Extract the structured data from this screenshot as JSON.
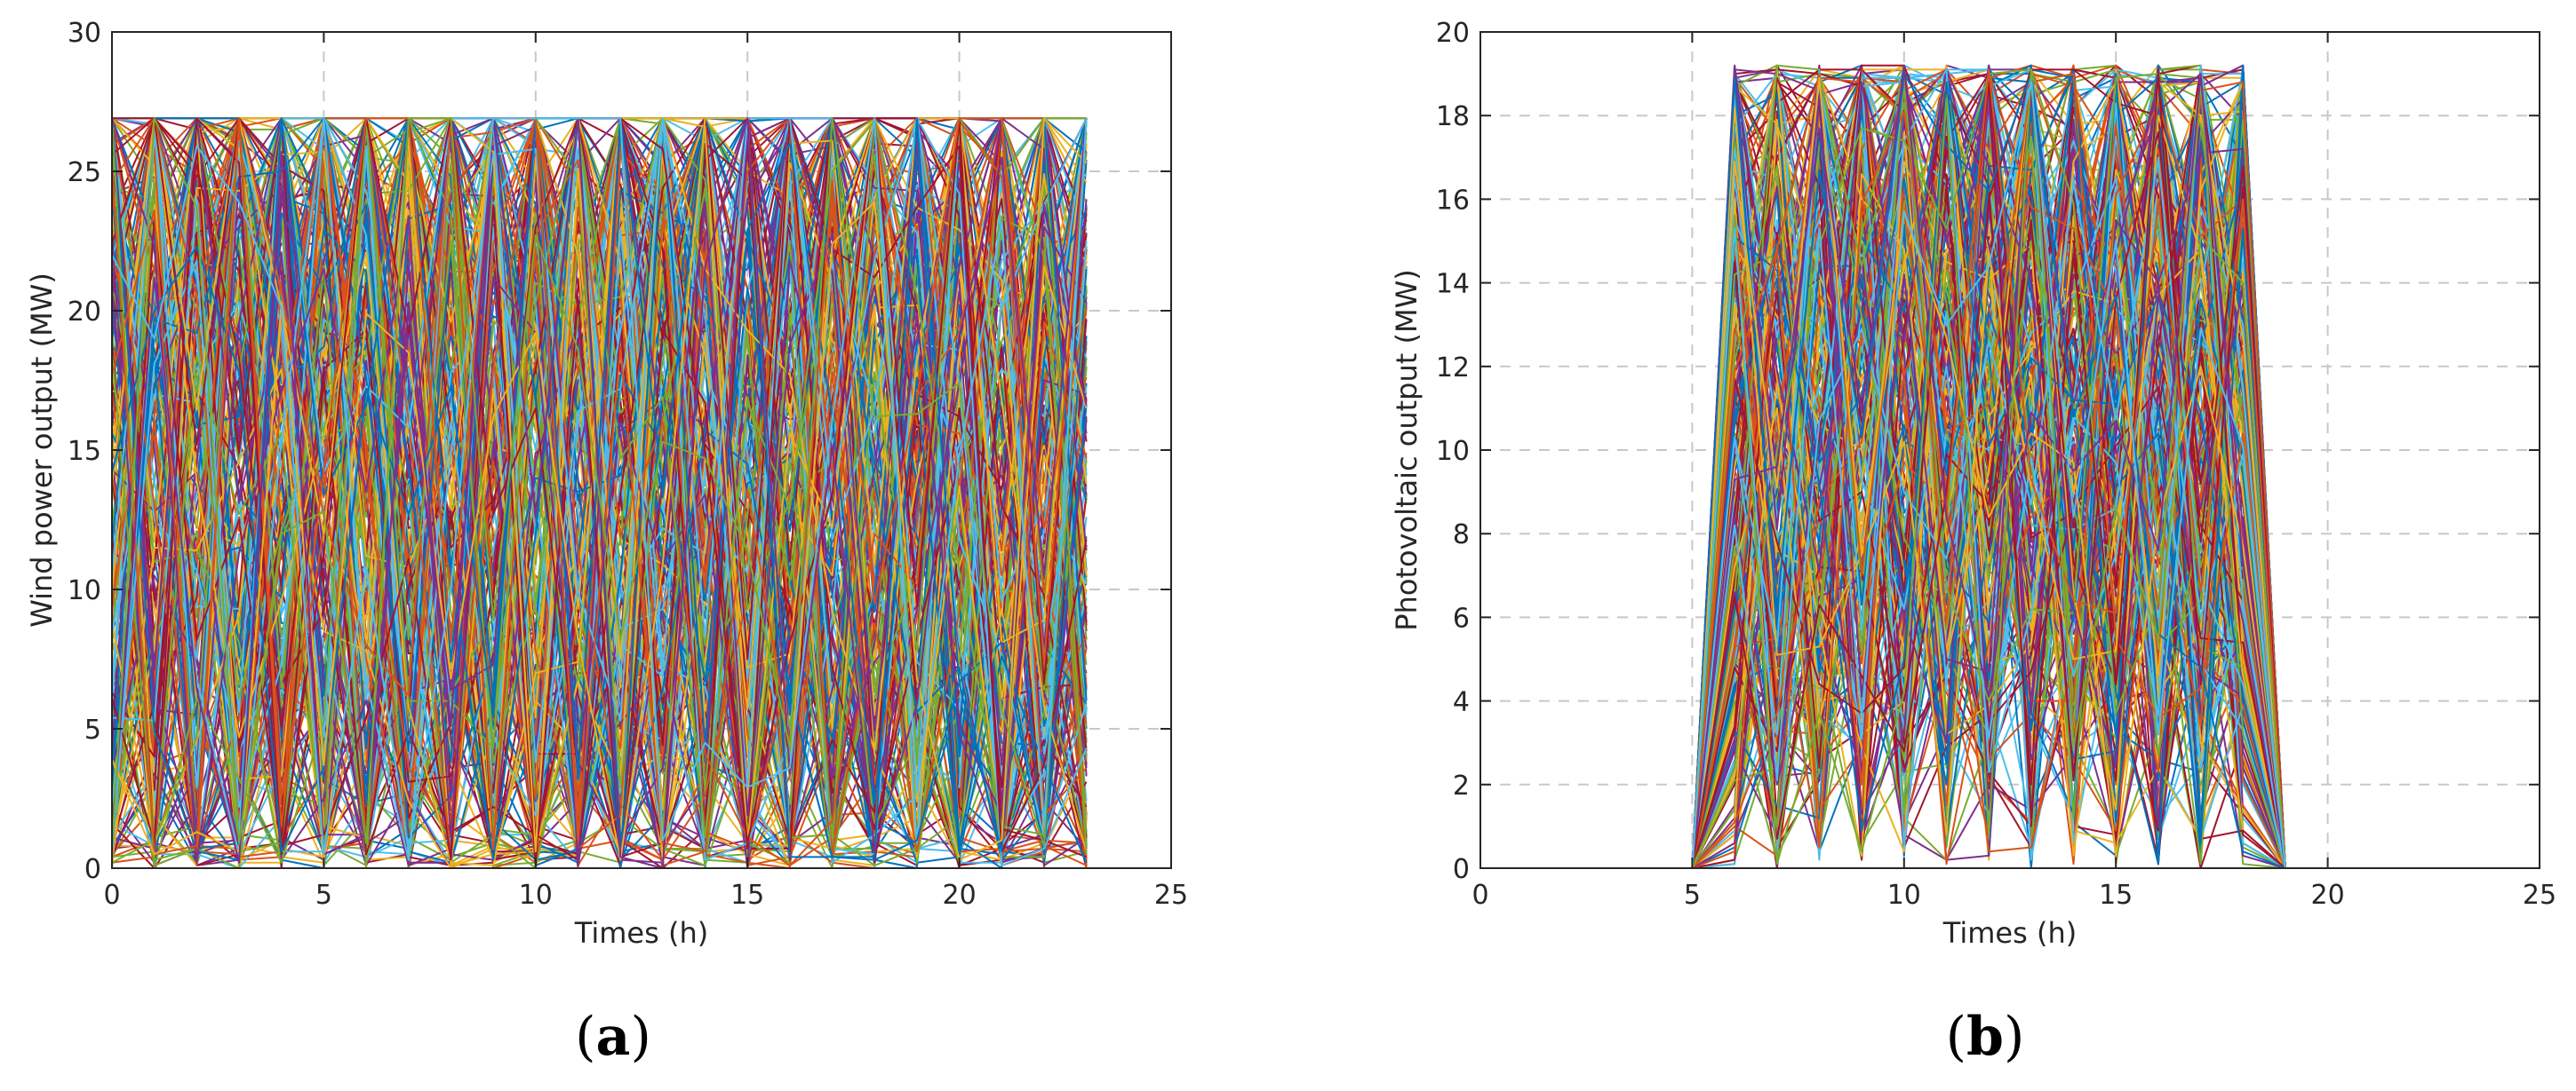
{
  "chart_data": [
    {
      "panel": "(a)",
      "panel_paren_open": "(",
      "panel_letter": "a",
      "panel_paren_close": ")",
      "type": "line",
      "title": "",
      "xlabel": "Times (h)",
      "ylabel": "Wind power output (MW)",
      "xlim": [
        0,
        25
      ],
      "ylim": [
        0,
        30
      ],
      "xticks": [
        "0",
        "5",
        "10",
        "15",
        "20",
        "25"
      ],
      "yticks": [
        "0",
        "5",
        "10",
        "15",
        "20",
        "25",
        "30"
      ],
      "grid": true,
      "x_range_of_data": [
        0,
        23
      ],
      "value_range": [
        0,
        26.9
      ],
      "scenario_count_approx": 300,
      "series_colors": [
        "#0072BD",
        "#D95319",
        "#EDB120",
        "#7E2F8E",
        "#77AC30",
        "#4DBEEE",
        "#A2142F"
      ],
      "series": [
        {
          "values": [
            26.9,
            0,
            26.9,
            2.1,
            24.8,
            0.4,
            26.9,
            5.3,
            21.7,
            0,
            26.9,
            12.4,
            3.1,
            26.9,
            0,
            18.2,
            26.9,
            0.8,
            26.9,
            0,
            24.1,
            6.5,
            26.9,
            0
          ]
        },
        {
          "values": [
            0,
            26.9,
            1.2,
            26.9,
            0,
            22.6,
            3.8,
            26.9,
            0,
            26.9,
            4.7,
            26.9,
            0.3,
            15.1,
            26.9,
            0,
            20.4,
            26.9,
            0,
            26.9,
            2.2,
            26.9,
            0,
            26.9
          ]
        },
        {
          "values": [
            13.5,
            8.2,
            19.7,
            4.4,
            16.3,
            22.1,
            7.9,
            11.6,
            25.3,
            2.8,
            14.9,
            18.4,
            6.1,
            23.7,
            9.5,
            3.6,
            17.2,
            21.8,
            12.3,
            5.7,
            19.9,
            8.8,
            15.4,
            10.2
          ]
        },
        {
          "values": [
            5.1,
            18.6,
            2.4,
            21.3,
            11.7,
            1.9,
            24.2,
            8.5,
            14.1,
            19.8,
            0.6,
            9.7,
            26.9,
            4.3,
            12.8,
            22.5,
            1.5,
            16.9,
            7.2,
            23.4,
            3.3,
            13.6,
            20.1,
            6.4
          ]
        },
        {
          "values": [
            22.3,
            12.7,
            26.9,
            9.1,
            3.5,
            17.8,
            13.2,
            0,
            19.4,
            7.6,
            23.9,
            2.5,
            16.7,
            8.3,
            21.2,
            11.1,
            5.8,
            26.9,
            14.6,
            1.1,
            10.9,
            25.6,
            4.7,
            18.3
          ]
        },
        {
          "values": [
            9.8,
            3.2,
            14.5,
            26.9,
            7.1,
            12.4,
            0.9,
            20.6,
            5.5,
            16.2,
            9.3,
            0,
            21.9,
            13.7,
            2.6,
            25.1,
            8.9,
            4.2,
            18.7,
            11.8,
            26.9,
            1.4,
            9.6,
            22.8
          ]
        },
        {
          "values": [
            17.4,
            24.1,
            6.8,
            13.9,
            20.2,
            5.3,
            16.5,
            23.6,
            1.8,
            11.4,
            17.7,
            21.1,
            9.9,
            0.7,
            24.6,
            6.9,
            13.3,
            10.5,
            2.9,
            15.7,
            6.1,
            18.2,
            26.9,
            3.7
          ]
        },
        {
          "values": [
            1.6,
            15.3,
            22.8,
            7.7,
            26.9,
            9.6,
            19.1,
            3.4,
            12.2,
            24.4,
            6.3,
            15.8,
            1.2,
            19.6,
            16.1,
            9.2,
            24.3,
            2.1,
            21.5,
            8.1,
            14.2,
            4.9,
            12.7,
            26.9
          ]
        },
        {
          "values": [
            11.2,
            20.9,
            9.4,
            17.6,
            2.3,
            26.9,
            10.4,
            15.9,
            8.7,
            3.1,
            21.6,
            7.4,
            12.9,
            26.9,
            5.1,
            14.3,
            0.4,
            19.2,
            25.7,
            4.6,
            11.3,
            23.1,
            7.8,
            14.9
          ]
        },
        {
          "values": [
            24.7,
            6.4,
            11.8,
            1.3,
            14.6,
            19.9,
            2.7,
            25.4,
            17.3,
            9.9,
            1.4,
            24.2,
            18.8,
            10.5,
            7.3,
            20.7,
            15.8,
            8.4,
            0.9,
            21.4,
            17.6,
            10.1,
            2.6,
            8.2
          ]
        },
        {
          "values": [
            7.3,
            11.9,
            17.1,
            23.5,
            9.8,
            14.2,
            22.7,
            6.6,
            26.9,
            13.1,
            19.5,
            4.8,
            23.3,
            6.9,
            19.2,
            1.3,
            22.1,
            13.6,
            9.4,
            17.9,
            0.8,
            16.6,
            21.3,
            1.9
          ]
        },
        {
          "values": [
            19.2,
            1.9,
            4.3,
            11.4,
            18.5,
            7.2,
            14.8,
            18.3,
            10.1,
            21.7,
            12.6,
            16.9,
            4.4,
            17.2,
            11.5,
            26.9,
            10.7,
            24.8,
            16.3,
            2.7,
            8.5,
            26.9,
            13.9,
            17.1
          ]
        }
      ]
    },
    {
      "panel": "(b)",
      "panel_paren_open": "(",
      "panel_letter": "b",
      "panel_paren_close": ")",
      "type": "line",
      "title": "",
      "xlabel": "Times (h)",
      "ylabel": "Photovoltaic output (MW)",
      "xlim": [
        0,
        25
      ],
      "ylim": [
        0,
        20
      ],
      "xticks": [
        "0",
        "5",
        "10",
        "15",
        "20",
        "25"
      ],
      "yticks": [
        "0",
        "2",
        "4",
        "6",
        "8",
        "10",
        "12",
        "14",
        "16",
        "18",
        "20"
      ],
      "grid": true,
      "x_range_of_data": [
        1,
        24
      ],
      "value_range": [
        0,
        19.2
      ],
      "nonzero_hours": [
        6,
        18
      ],
      "scenario_count_approx": 300,
      "series_colors": [
        "#0072BD",
        "#D95319",
        "#EDB120",
        "#7E2F8E",
        "#77AC30",
        "#4DBEEE",
        "#A2142F"
      ],
      "series": [
        {
          "values": [
            0,
            0,
            0,
            0,
            0,
            18.9,
            12.4,
            17.1,
            5.3,
            15.6,
            9.8,
            18.2,
            3.9,
            16.4,
            11.2,
            17.7,
            6.8,
            18.6,
            0,
            0,
            0,
            0,
            0,
            0
          ]
        },
        {
          "values": [
            0,
            0,
            0,
            0,
            0,
            7.2,
            18.1,
            4.6,
            16.9,
            2.8,
            17.5,
            8.3,
            14.2,
            4.1,
            18.3,
            9.6,
            17.9,
            2.4,
            0,
            0,
            0,
            0,
            0,
            0
          ]
        },
        {
          "values": [
            0,
            0,
            0,
            0,
            0,
            14.3,
            5.7,
            12.8,
            18.4,
            9.1,
            3.6,
            15.9,
            10.7,
            19.0,
            6.3,
            13.5,
            4.8,
            16.2,
            0,
            0,
            0,
            0,
            0,
            0
          ]
        },
        {
          "values": [
            0,
            0,
            0,
            0,
            0,
            3.1,
            15.2,
            9.4,
            11.6,
            17.8,
            13.4,
            5.1,
            18.8,
            7.9,
            15.1,
            2.1,
            12.6,
            9.7,
            0,
            0,
            0,
            0,
            0,
            0
          ]
        },
        {
          "values": [
            0,
            0,
            0,
            0,
            0,
            18.6,
            9.3,
            16.7,
            7.2,
            12.4,
            18.9,
            11.8,
            6.6,
            14.9,
            1.4,
            16.8,
            10.3,
            19.1,
            0,
            0,
            0,
            0,
            0,
            0
          ]
        },
        {
          "values": [
            0,
            0,
            0,
            0,
            0,
            11.7,
            2.5,
            6.9,
            14.8,
            4.3,
            8.2,
            17.6,
            12.1,
            2.7,
            10.5,
            18.4,
            3.1,
            7.5,
            0,
            0,
            0,
            0,
            0,
            0
          ]
        },
        {
          "values": [
            0,
            0,
            0,
            0,
            0,
            16.4,
            13.8,
            2.2,
            9.9,
            19.1,
            6.7,
            1.9,
            16.2,
            11.3,
            17.7,
            7.4,
            15.6,
            12.8,
            0,
            0,
            0,
            0,
            0,
            0
          ]
        },
        {
          "values": [
            0,
            0,
            0,
            0,
            0,
            5.9,
            17.4,
            13.6,
            3.8,
            7.6,
            15.3,
            13.1,
            9.4,
            17.5,
            5.9,
            12.2,
            18.5,
            4.3,
            0,
            0,
            0,
            0,
            0,
            0
          ]
        },
        {
          "values": [
            0,
            0,
            0,
            0,
            0,
            9.5,
            7.1,
            18.8,
            12.7,
            14.9,
            1.2,
            9.7,
            18.9,
            6.2,
            13.4,
            4.5,
            8.9,
            17.3,
            0,
            0,
            0,
            0,
            0,
            0
          ]
        },
        {
          "values": [
            0,
            0,
            0,
            0,
            0,
            17.3,
            11.9,
            5.4,
            17.2,
            1.1,
            12.6,
            16.4,
            4.8,
            12.6,
            8.7,
            15.2,
            1.8,
            11.4,
            0,
            0,
            0,
            0,
            0,
            0
          ]
        },
        {
          "values": [
            0,
            0,
            0,
            0,
            0,
            12.6,
            4.2,
            15.3,
            6.4,
            16.5,
            10.2,
            3.5,
            14.3,
            9.1,
            16.9,
            1.6,
            14.2,
            15.9,
            0,
            0,
            0,
            0,
            0,
            0
          ]
        },
        {
          "values": [
            0,
            0,
            0,
            0,
            0,
            1.4,
            16.3,
            10.8,
            15.7,
            11.3,
            19.0,
            14.2,
            1.7,
            15.8,
            3.6,
            11.9,
            16.7,
            6.1,
            0,
            0,
            0,
            0,
            0,
            0
          ]
        }
      ]
    }
  ]
}
